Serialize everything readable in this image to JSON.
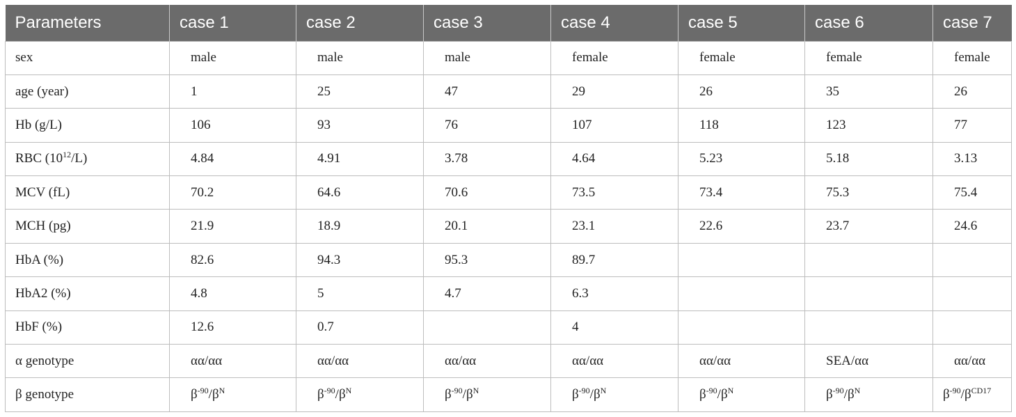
{
  "table": {
    "headers": [
      "Parameters",
      "case 1",
      "case 2",
      "case 3",
      "case 4",
      "case 5",
      "case 6",
      "case 7"
    ],
    "rows": [
      {
        "label": {
          "text": "sex"
        },
        "cells": [
          "male",
          "male",
          "male",
          "female",
          "female",
          "female",
          "female"
        ]
      },
      {
        "label": {
          "text": "age (year)"
        },
        "cells": [
          "1",
          "25",
          "47",
          "29",
          "26",
          "35",
          "26"
        ]
      },
      {
        "label": {
          "text": "Hb (g/L)"
        },
        "cells": [
          "106",
          "93",
          "76",
          "107",
          "118",
          "123",
          "77"
        ]
      },
      {
        "label": {
          "pre": "RBC (10",
          "sup": "12",
          "post": "/L)"
        },
        "cells": [
          "4.84",
          "4.91",
          "3.78",
          "4.64",
          "5.23",
          "5.18",
          "3.13"
        ]
      },
      {
        "label": {
          "text": "MCV (fL)"
        },
        "cells": [
          "70.2",
          "64.6",
          "70.6",
          "73.5",
          "73.4",
          "75.3",
          "75.4"
        ]
      },
      {
        "label": {
          "text": "MCH (pg)"
        },
        "cells": [
          "21.9",
          "18.9",
          "20.1",
          "23.1",
          "22.6",
          "23.7",
          "24.6"
        ]
      },
      {
        "label": {
          "text": "HbA (%)"
        },
        "cells": [
          "82.6",
          "94.3",
          "95.3",
          "89.7",
          "",
          "",
          ""
        ]
      },
      {
        "label": {
          "text": "HbA2 (%)"
        },
        "cells": [
          "4.8",
          "5",
          "4.7",
          "6.3",
          "",
          "",
          ""
        ]
      },
      {
        "label": {
          "text": "HbF (%)"
        },
        "cells": [
          "12.6",
          "0.7",
          "",
          "4",
          "",
          "",
          ""
        ]
      },
      {
        "label": {
          "text": "α genotype"
        },
        "cells": [
          "αα/αα",
          "αα/αα",
          "αα/αα",
          "αα/αα",
          "αα/αα",
          "SEA/αα",
          "αα/αα"
        ]
      },
      {
        "label": {
          "text": "β genotype"
        },
        "cells": [
          {
            "base1": "β",
            "sup1": "-90",
            "slash": "/",
            "base2": "β",
            "sup2": "N"
          },
          {
            "base1": "β",
            "sup1": "-90",
            "slash": "/",
            "base2": "β",
            "sup2": "N"
          },
          {
            "base1": "β",
            "sup1": "-90",
            "slash": "/",
            "base2": "β",
            "sup2": "N"
          },
          {
            "base1": "β",
            "sup1": "-90",
            "slash": "/",
            "base2": "β",
            "sup2": "N"
          },
          {
            "base1": "β",
            "sup1": "-90",
            "slash": "/",
            "base2": "β",
            "sup2": "N"
          },
          {
            "base1": "β",
            "sup1": "-90",
            "slash": "/",
            "base2": "β",
            "sup2": "N"
          },
          {
            "base1": "β",
            "sup1": "-90",
            "slash": "/",
            "base2": "β",
            "sup2": "CD17"
          }
        ]
      }
    ]
  }
}
